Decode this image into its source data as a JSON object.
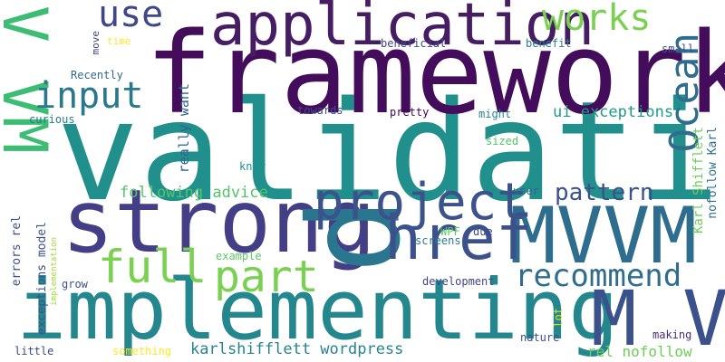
{
  "words": [
    {
      "text": "validation",
      "color": "#21908d"
    },
    {
      "text": "framework",
      "color": "#440d5b"
    },
    {
      "text": "implementing",
      "color": "#24878e"
    },
    {
      "text": "strong",
      "color": "#433e85"
    },
    {
      "text": "application",
      "color": "#461c63"
    },
    {
      "text": "V VM",
      "color": "#3dbc74"
    },
    {
      "text": "MVVM",
      "color": "#2e6d8e"
    },
    {
      "text": "p",
      "color": "#2a768e"
    },
    {
      "text": "M V",
      "color": "#3b518b"
    },
    {
      "text": "href",
      "color": "#3b518b"
    },
    {
      "text": "project",
      "color": "#3b528b"
    },
    {
      "text": "Ocean",
      "color": "#2e6d8e"
    },
    {
      "text": "full",
      "color": "#7ad151"
    },
    {
      "text": "part",
      "color": "#7ad151"
    },
    {
      "text": "use",
      "color": "#3f4788"
    },
    {
      "text": "works",
      "color": "#7ad151"
    },
    {
      "text": "input",
      "color": "#2a788e"
    },
    {
      "text": "recommend",
      "color": "#2f6c8e"
    },
    {
      "text": "pattern",
      "color": "#3b518b"
    },
    {
      "text": "ui exceptions",
      "color": "#1f9a8a"
    },
    {
      "text": "following advice",
      "color": "#52c569"
    },
    {
      "text": "karlshifflett wordpress",
      "color": "#25848e"
    },
    {
      "text": "rel nofollow",
      "color": "#6ece58"
    },
    {
      "text": "really want",
      "color": "#33638d"
    },
    {
      "text": "Karl Shifflett",
      "color": "#6ece58"
    },
    {
      "text": "nofollow Karl",
      "color": "#2c718e"
    },
    {
      "text": "exceptions model",
      "color": "#3b528b"
    },
    {
      "text": "errors rel",
      "color": "#3b528b"
    },
    {
      "text": "implementation",
      "color": "#a0da39"
    },
    {
      "text": "move",
      "color": "#414487"
    },
    {
      "text": "time",
      "color": "#fde725"
    },
    {
      "text": "beneficial",
      "color": "#3f4889"
    },
    {
      "text": "benefit",
      "color": "#25848e"
    },
    {
      "text": "small",
      "color": "#3b528b"
    },
    {
      "text": "Recently",
      "color": "#31688e"
    },
    {
      "text": "curious",
      "color": "#2a788e"
    },
    {
      "text": "towards",
      "color": "#3b518b"
    },
    {
      "text": "pretty",
      "color": "#440154"
    },
    {
      "text": "might",
      "color": "#25848e"
    },
    {
      "text": "sized",
      "color": "#52c569"
    },
    {
      "text": "know",
      "color": "#21918c"
    },
    {
      "text": "user",
      "color": "#33638d"
    },
    {
      "text": "WPF",
      "color": "#5ec962"
    },
    {
      "text": "due",
      "color": "#3e4989"
    },
    {
      "text": "screens",
      "color": "#2a788e"
    },
    {
      "text": "example",
      "color": "#5ec962"
    },
    {
      "text": "grow",
      "color": "#3b528b"
    },
    {
      "text": "development",
      "color": "#414487"
    },
    {
      "text": "lot",
      "color": "#dce319"
    },
    {
      "text": "making",
      "color": "#472d7b"
    },
    {
      "text": "nature",
      "color": "#3b528b"
    },
    {
      "text": "little",
      "color": "#3e4989"
    },
    {
      "text": "something",
      "color": "#fde725"
    }
  ]
}
